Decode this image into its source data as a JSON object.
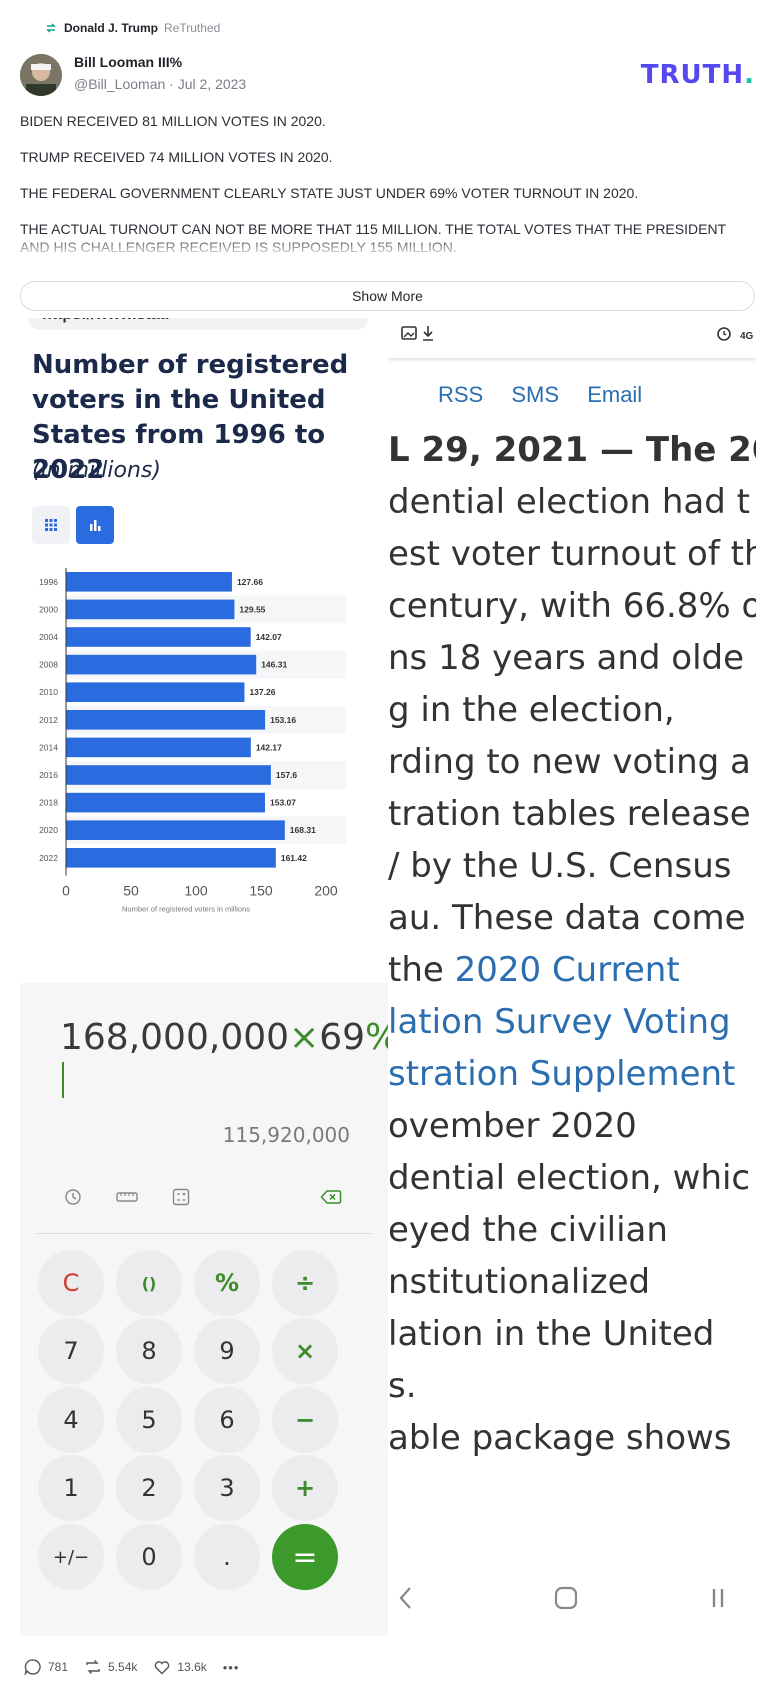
{
  "retruth": {
    "who": "Donald J. Trump",
    "label": "ReTruthed"
  },
  "author": {
    "name": "Bill Looman III%",
    "handle": "@Bill_Looman",
    "date": "Jul 2, 2023"
  },
  "brand": {
    "text": "TRUTH",
    "dot": "."
  },
  "post": {
    "lines": [
      "BIDEN RECEIVED 81 MILLION VOTES IN 2020.",
      "TRUMP RECEIVED 74 MILLION VOTES IN 2020.",
      "THE FEDERAL GOVERNMENT CLEARLY STATE JUST UNDER 69% VOTER TURNOUT IN 2020.",
      "THE ACTUAL TURNOUT CAN NOT BE MORE THAT 115 MILLION.  THE TOTAL VOTES THAT THE PRESIDENT AND HIS CHALLENGER RECEIVED IS SUPPOSEDLY 155 MILLION."
    ],
    "show_more": "Show More"
  },
  "left_screenshot": {
    "url_fragment": "https://www.stati",
    "title": "Number of registered voters in the United States from 1996 to 2022",
    "subtitle": "(in millions)"
  },
  "chart_data": {
    "type": "bar",
    "orientation": "horizontal",
    "categories": [
      "1996",
      "2000",
      "2004",
      "2008",
      "2010",
      "2012",
      "2014",
      "2016",
      "2018",
      "2020",
      "2022"
    ],
    "values": [
      127.66,
      129.55,
      142.07,
      146.31,
      137.26,
      153.16,
      142.17,
      157.6,
      153.07,
      168.31,
      161.42
    ],
    "value_labels": [
      "127.66",
      "129.55",
      "142.07",
      "146.31",
      "137.26",
      "153.16",
      "142.17",
      "157.6",
      "153.07",
      "168.31",
      "161.42"
    ],
    "xlabel": "Number of registered voters in millions",
    "xlim": [
      0,
      200
    ],
    "xticks": [
      "0",
      "50",
      "100",
      "150",
      "200"
    ],
    "color": "#2a6be0"
  },
  "calculator": {
    "expr_left": "168,000,000",
    "expr_op1": "×",
    "expr_mid": "69",
    "expr_op2": "%",
    "result": "115,920,000",
    "keys": [
      [
        "C",
        "()",
        "%",
        "÷"
      ],
      [
        "7",
        "8",
        "9",
        "×"
      ],
      [
        "4",
        "5",
        "6",
        "−"
      ],
      [
        "1",
        "2",
        "3",
        "+"
      ],
      [
        "+/−",
        "0",
        ".",
        "="
      ]
    ]
  },
  "right_screenshot": {
    "links": [
      "RSS",
      "SMS",
      "Email"
    ],
    "lines": [
      "L 29, 2021 — The 20",
      "dential election had t",
      "est voter turnout of th",
      "century, with 66.8% o",
      "ns 18 years and olde",
      "g in the election,",
      "rding to new voting a",
      "tration tables release",
      "/ by the U.S. Census",
      "au. These data come",
      "the 2020 Current",
      "lation Survey Voting",
      "stration Supplement",
      "ovember 2020",
      "dential election, whic",
      "eyed the civilian",
      "nstitutionalized",
      "lation in the United",
      "s.",
      "able package shows"
    ]
  },
  "actions": {
    "replies": "781",
    "retruths": "5.54k",
    "likes": "13.6k",
    "more": "•••"
  }
}
